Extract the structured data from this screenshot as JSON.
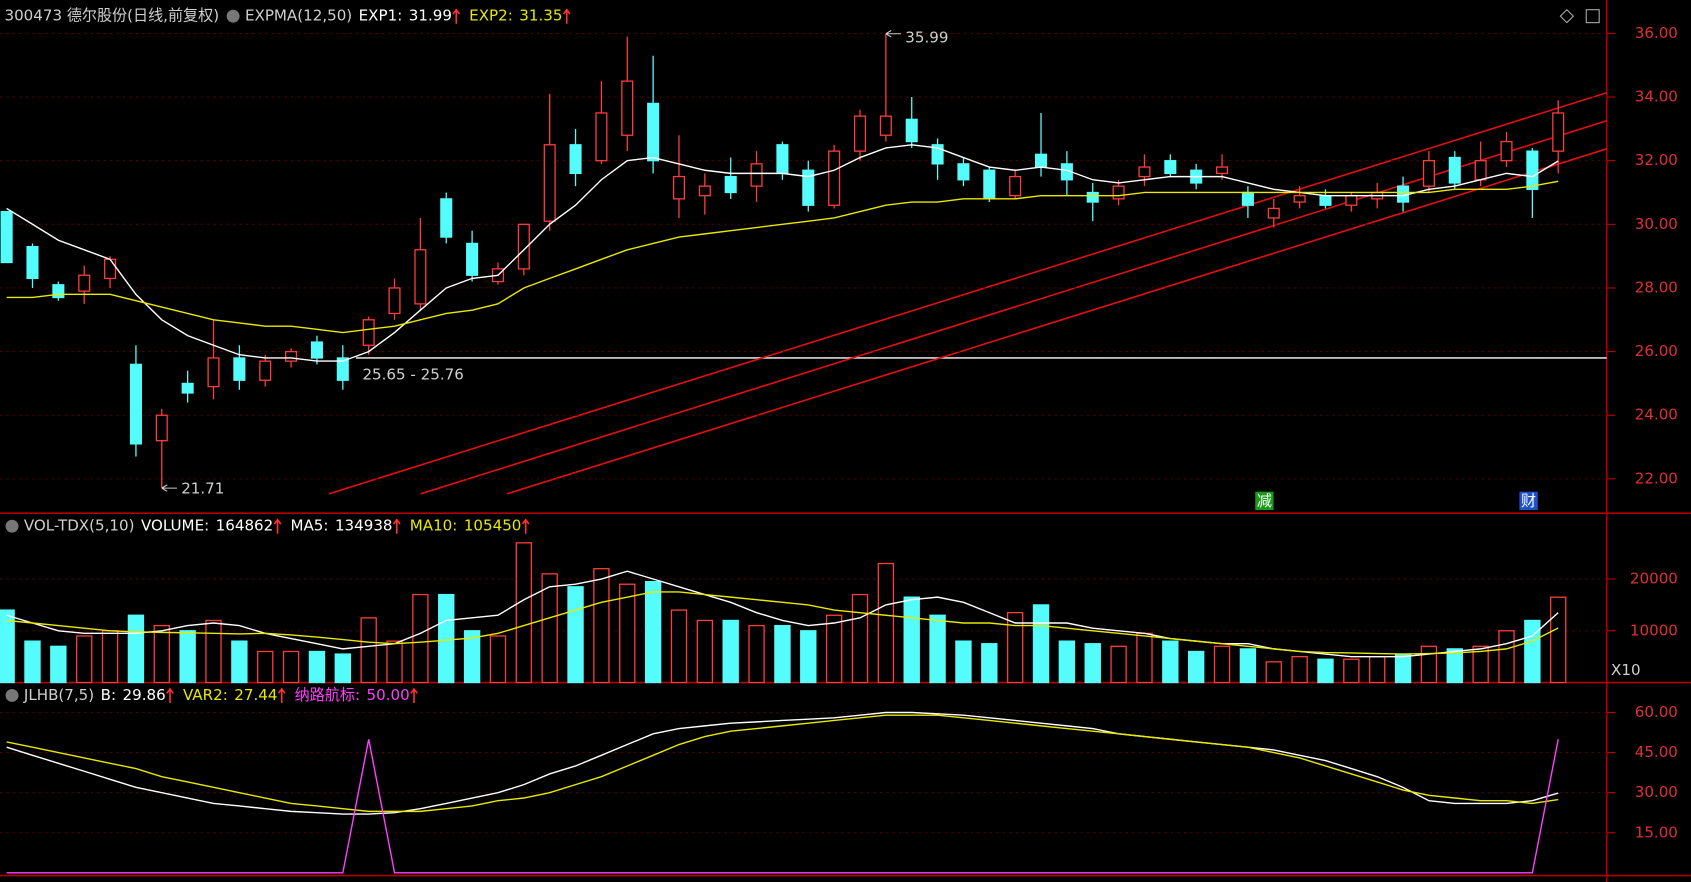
{
  "chart_data": [
    {
      "type": "candlestick",
      "title": "300473 德尔股份(日线,前复权)",
      "indicator": "EXPMA(12,50)",
      "open": [
        30.4,
        29.3,
        28.1,
        27.9,
        28.3,
        25.6,
        23.2,
        25.0,
        24.9,
        25.8,
        25.1,
        25.7,
        26.3,
        25.8,
        26.2,
        27.2,
        27.5,
        30.8,
        29.4,
        28.2,
        28.6,
        30.1,
        32.5,
        32.0,
        32.8,
        33.8,
        30.8,
        30.9,
        31.5,
        31.2,
        32.5,
        31.7,
        30.6,
        32.3,
        32.8,
        33.3,
        32.5,
        31.9,
        31.7,
        30.9,
        32.2,
        31.9,
        31.0,
        30.8,
        31.5,
        32.0,
        31.7,
        31.6,
        31.0,
        30.2,
        30.7,
        30.9,
        30.6,
        30.8,
        31.2,
        31.2,
        32.1,
        31.4,
        32.0,
        32.3,
        32.3
      ],
      "high": [
        30.4,
        29.4,
        28.2,
        28.7,
        29.0,
        26.2,
        24.2,
        25.4,
        27.0,
        26.2,
        25.9,
        26.1,
        26.5,
        26.2,
        27.1,
        28.3,
        30.2,
        31.0,
        29.8,
        28.8,
        30.0,
        34.1,
        33.0,
        34.5,
        35.9,
        35.3,
        32.8,
        31.6,
        32.1,
        32.3,
        32.6,
        32.0,
        32.5,
        33.6,
        35.99,
        34.0,
        32.7,
        32.1,
        31.8,
        31.7,
        33.5,
        32.3,
        31.3,
        31.4,
        32.2,
        32.2,
        31.9,
        32.2,
        31.2,
        30.8,
        31.2,
        31.1,
        31.0,
        31.3,
        31.5,
        32.3,
        32.3,
        32.6,
        32.9,
        32.4,
        33.9
      ],
      "low": [
        28.8,
        28.0,
        27.6,
        27.5,
        28.0,
        22.7,
        21.71,
        24.4,
        24.5,
        24.8,
        24.9,
        25.5,
        25.6,
        24.8,
        25.9,
        27.0,
        27.3,
        29.4,
        28.2,
        28.1,
        28.4,
        29.8,
        31.2,
        31.9,
        32.3,
        31.6,
        30.2,
        30.3,
        30.8,
        30.7,
        31.4,
        30.4,
        30.5,
        32.0,
        32.6,
        32.4,
        31.4,
        31.2,
        30.7,
        30.8,
        31.5,
        30.9,
        30.1,
        30.6,
        31.2,
        31.5,
        31.1,
        31.4,
        30.2,
        29.9,
        30.5,
        30.5,
        30.4,
        30.5,
        30.4,
        31.0,
        31.1,
        31.2,
        31.8,
        30.2,
        31.6
      ],
      "close": [
        28.8,
        28.3,
        27.7,
        28.4,
        28.9,
        23.1,
        24.0,
        24.7,
        25.8,
        25.1,
        25.7,
        26.0,
        25.8,
        25.1,
        27.0,
        28.0,
        29.2,
        29.6,
        28.4,
        28.6,
        30.0,
        32.5,
        31.6,
        33.5,
        34.5,
        32.0,
        31.5,
        31.2,
        31.0,
        31.9,
        31.6,
        30.6,
        32.3,
        33.4,
        33.4,
        32.6,
        31.9,
        31.4,
        30.8,
        31.5,
        31.8,
        31.4,
        30.7,
        31.2,
        31.8,
        31.6,
        31.3,
        31.8,
        30.6,
        30.5,
        30.9,
        30.6,
        30.9,
        31.0,
        30.7,
        32.0,
        31.3,
        32.0,
        32.6,
        31.1,
        33.5
      ],
      "up_color": "#ff3c3c",
      "down_color": "#54fcfc",
      "series": [
        {
          "name": "EXP1:",
          "color": "#ffffff",
          "values": [
            30.5,
            30.0,
            29.5,
            29.2,
            28.9,
            27.8,
            27.0,
            26.5,
            26.2,
            25.9,
            25.8,
            25.8,
            25.7,
            25.7,
            26.0,
            26.6,
            27.3,
            28.0,
            28.3,
            28.4,
            29.2,
            30.0,
            30.6,
            31.4,
            32.0,
            32.1,
            31.9,
            31.7,
            31.6,
            31.6,
            31.6,
            31.5,
            31.7,
            32.1,
            32.4,
            32.5,
            32.4,
            32.1,
            31.8,
            31.7,
            31.8,
            31.7,
            31.4,
            31.3,
            31.4,
            31.5,
            31.5,
            31.5,
            31.3,
            31.1,
            31.0,
            30.9,
            30.9,
            30.9,
            30.9,
            31.1,
            31.2,
            31.4,
            31.6,
            31.5,
            31.99
          ]
        },
        {
          "name": "EXP2:",
          "color": "#e8e800",
          "values": [
            27.7,
            27.7,
            27.8,
            27.8,
            27.8,
            27.6,
            27.4,
            27.2,
            27.0,
            26.9,
            26.8,
            26.8,
            26.7,
            26.6,
            26.7,
            26.8,
            27.0,
            27.2,
            27.3,
            27.5,
            28.0,
            28.3,
            28.6,
            28.9,
            29.2,
            29.4,
            29.6,
            29.7,
            29.8,
            29.9,
            30.0,
            30.1,
            30.2,
            30.4,
            30.6,
            30.7,
            30.7,
            30.8,
            30.8,
            30.8,
            30.9,
            30.9,
            30.9,
            30.9,
            31.0,
            31.0,
            31.0,
            31.0,
            31.0,
            31.0,
            31.0,
            31.0,
            31.0,
            31.0,
            31.0,
            31.0,
            31.1,
            31.1,
            31.1,
            31.2,
            31.35
          ]
        }
      ],
      "ylim": [
        20.92,
        37.05
      ],
      "yticks": [
        {
          "value": 22,
          "label": "22.00"
        },
        {
          "value": 24,
          "label": "24.00"
        },
        {
          "value": 26,
          "label": "26.00"
        },
        {
          "value": 28,
          "label": "28.00"
        },
        {
          "value": 30,
          "label": "30.00"
        },
        {
          "value": 32,
          "label": "32.00"
        },
        {
          "value": 34,
          "label": "34.00"
        },
        {
          "value": 36,
          "label": "36.00"
        }
      ],
      "grid": true,
      "annotations": [
        "25.65 - 25.76"
      ],
      "markers": [
        "减",
        "财"
      ]
    },
    {
      "type": "bar",
      "title": "VOL-TDX(5,10)",
      "axis_note": "X10",
      "series": [
        {
          "name": "VOLUME:",
          "color": "#ffffff",
          "values": [
            140000,
            80000,
            70000,
            90000,
            100000,
            130000,
            110000,
            100000,
            120000,
            80000,
            60000,
            60000,
            60000,
            55000,
            125000,
            80000,
            170000,
            170000,
            100000,
            90000,
            270000,
            210000,
            185000,
            220000,
            190000,
            195000,
            140000,
            120000,
            120000,
            110000,
            110000,
            100000,
            130000,
            170000,
            230000,
            165000,
            130000,
            80000,
            75000,
            135000,
            150000,
            80000,
            75000,
            70000,
            95000,
            80000,
            60000,
            70000,
            65000,
            40000,
            50000,
            45000,
            45000,
            50000,
            55000,
            70000,
            65000,
            70000,
            100000,
            120000,
            164862
          ]
        },
        {
          "name": "MA5:",
          "color": "#ffffff",
          "values": [
            130000,
            115000,
            100000,
            95000,
            95000,
            95000,
            100000,
            110000,
            115000,
            110000,
            95000,
            85000,
            75000,
            65000,
            70000,
            75000,
            95000,
            120000,
            125000,
            130000,
            160000,
            185000,
            190000,
            200000,
            215000,
            200000,
            185000,
            170000,
            155000,
            135000,
            120000,
            110000,
            115000,
            125000,
            150000,
            160000,
            165000,
            155000,
            135000,
            115000,
            115000,
            115000,
            105000,
            100000,
            95000,
            85000,
            80000,
            75000,
            75000,
            65000,
            60000,
            55000,
            50000,
            50000,
            50000,
            55000,
            60000,
            65000,
            75000,
            90000,
            134938
          ]
        },
        {
          "name": "MA10:",
          "color": "#e8e800",
          "values": [
            120000,
            115000,
            110000,
            105000,
            100000,
            98000,
            97000,
            96000,
            95000,
            94000,
            95000,
            92000,
            88000,
            83000,
            78000,
            75000,
            78000,
            82000,
            86000,
            95000,
            110000,
            125000,
            140000,
            155000,
            165000,
            175000,
            175000,
            170000,
            165000,
            160000,
            155000,
            150000,
            140000,
            135000,
            130000,
            125000,
            120000,
            115000,
            115000,
            110000,
            110000,
            105000,
            100000,
            95000,
            90000,
            85000,
            80000,
            75000,
            70000,
            65000,
            60000,
            58000,
            57000,
            56000,
            55000,
            56000,
            57000,
            60000,
            65000,
            80000,
            105450
          ]
        }
      ],
      "ylim": [
        0,
        323000
      ],
      "yticks": [
        {
          "value": 100000,
          "label": "10000"
        },
        {
          "value": 200000,
          "label": "20000"
        }
      ],
      "grid": true
    },
    {
      "type": "line",
      "title": "JLHB(7,5)",
      "series": [
        {
          "name": "B:",
          "color": "#ffffff",
          "values": [
            47,
            44,
            41,
            38,
            35,
            32,
            30,
            28,
            26,
            25,
            24,
            23,
            22.5,
            22,
            22,
            22.5,
            24,
            26,
            28,
            30,
            33,
            37,
            40,
            44,
            48,
            52,
            54,
            55,
            56,
            56.5,
            57,
            57.5,
            58,
            59,
            60,
            60,
            59.5,
            59,
            58,
            57,
            56,
            55,
            54,
            52,
            51,
            50,
            49,
            48,
            47,
            46,
            44,
            42,
            39,
            36,
            32,
            27,
            26,
            26,
            26,
            27,
            29.86
          ]
        },
        {
          "name": "VAR2:",
          "color": "#e8e800",
          "values": [
            49,
            47,
            45,
            43,
            41,
            39,
            36,
            34,
            32,
            30,
            28,
            26,
            25,
            24,
            23,
            23,
            23,
            24,
            25,
            27,
            28,
            30,
            33,
            36,
            40,
            44,
            48,
            51,
            53,
            54,
            55,
            56,
            57,
            58,
            59,
            59,
            59,
            58,
            57,
            56,
            55,
            54,
            53,
            52,
            51,
            50,
            49,
            48,
            47,
            45,
            43,
            40,
            37,
            34,
            31,
            29,
            28,
            27,
            27,
            26,
            27.44
          ]
        },
        {
          "name": "纳路航标:",
          "color": "#ff40ff",
          "values": [
            0,
            0,
            0,
            0,
            0,
            0,
            0,
            0,
            0,
            0,
            0,
            0,
            0,
            0,
            50,
            0,
            0,
            0,
            0,
            0,
            0,
            0,
            0,
            0,
            0,
            0,
            0,
            0,
            0,
            0,
            0,
            0,
            0,
            0,
            0,
            0,
            0,
            0,
            0,
            0,
            0,
            0,
            0,
            0,
            0,
            0,
            0,
            0,
            0,
            0,
            0,
            0,
            0,
            0,
            0,
            0,
            0,
            0,
            0,
            0,
            50
          ],
          "value_labels": [
            null,
            null,
            null,
            null,
            null,
            null,
            null,
            null,
            null,
            null,
            null,
            null,
            null,
            null,
            null,
            null,
            null,
            null,
            null,
            null,
            null,
            null,
            null,
            null,
            null,
            null,
            null,
            null,
            null,
            null,
            null,
            null,
            null,
            null,
            null,
            null,
            null,
            null,
            null,
            null,
            null,
            null,
            null,
            null,
            null,
            null,
            null,
            null,
            null,
            null,
            null,
            null,
            null,
            null,
            null,
            null,
            null,
            null,
            null,
            null,
            "50.00"
          ]
        }
      ],
      "ylim": [
        -1,
        70
      ],
      "yticks": [
        {
          "value": 15,
          "label": "15.00"
        },
        {
          "value": 30,
          "label": "30.00"
        },
        {
          "value": 45,
          "label": "45.00"
        },
        {
          "value": 60,
          "label": "60.00"
        }
      ],
      "grid": true
    }
  ]
}
